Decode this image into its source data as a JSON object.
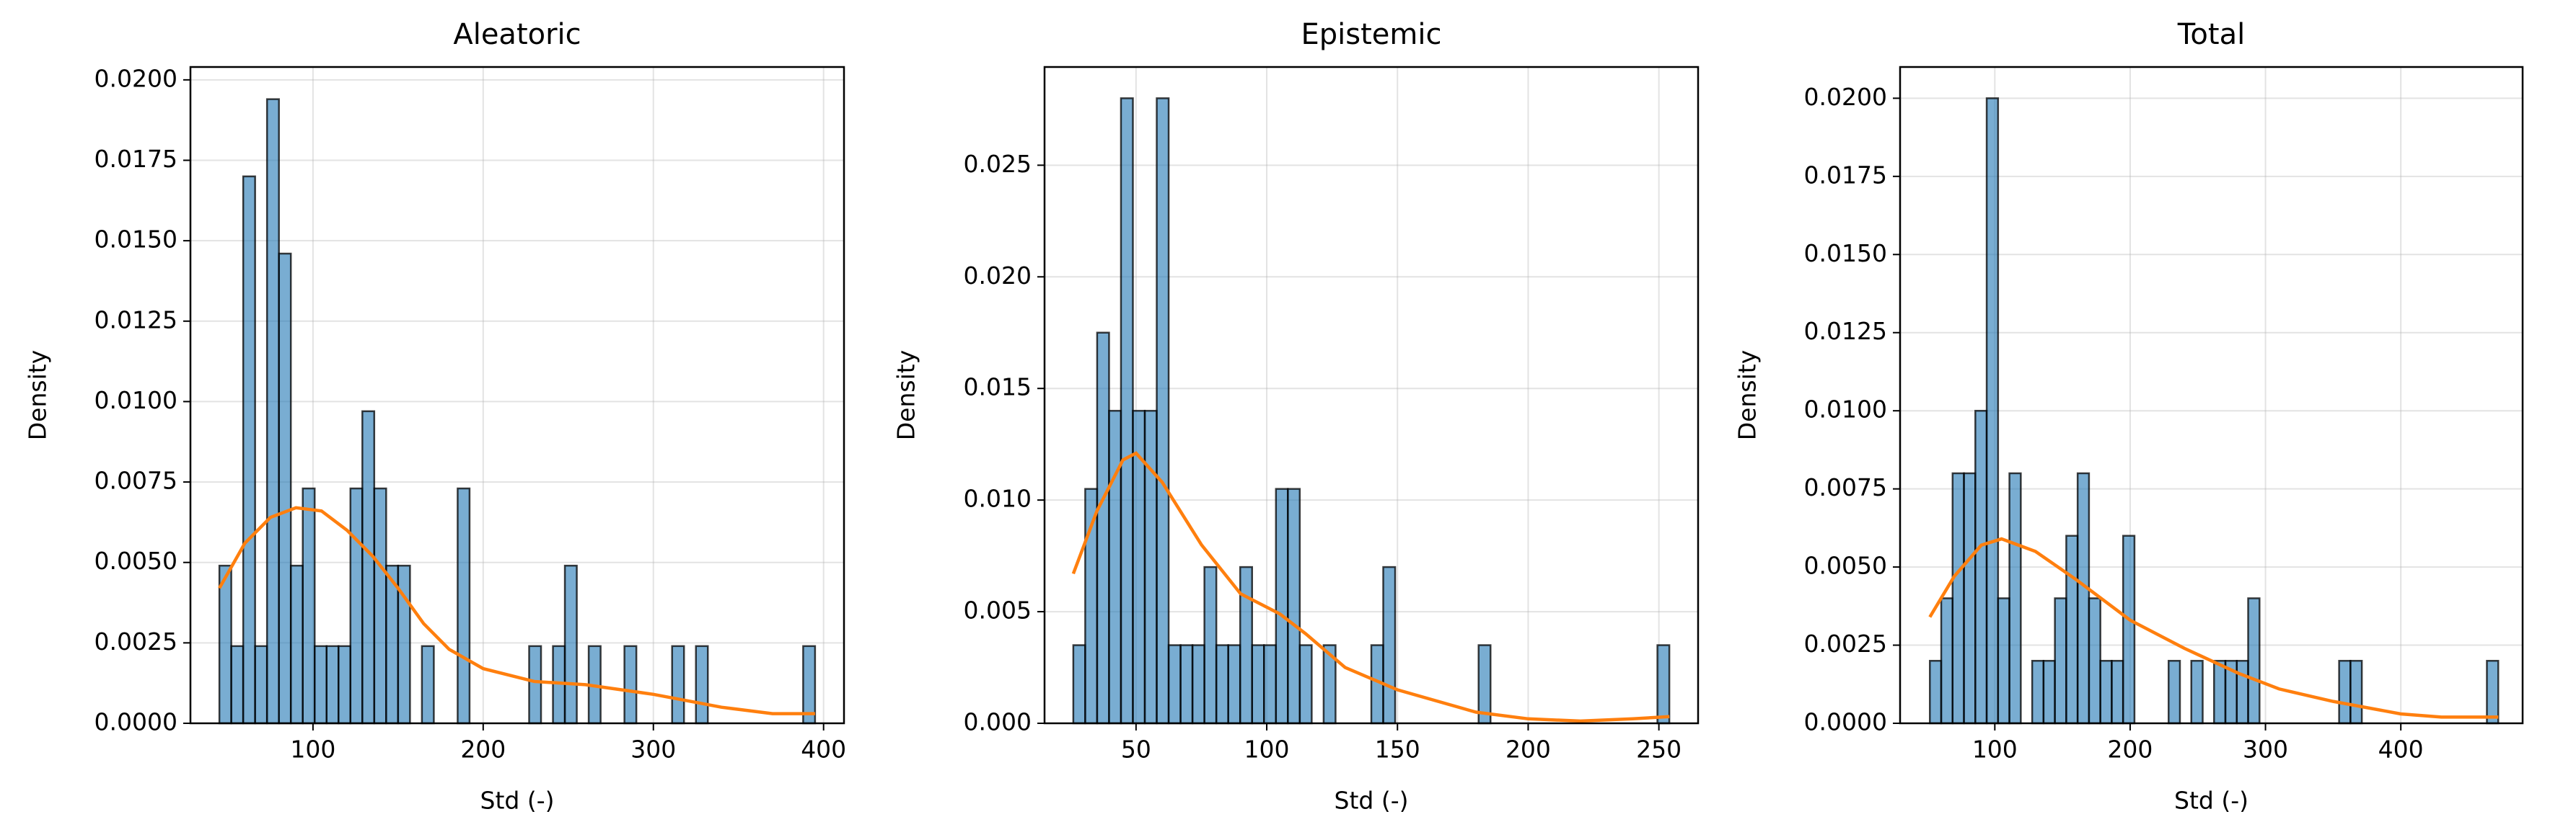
{
  "chart_data": [
    {
      "type": "histogram",
      "title": "Aleatoric",
      "x_label": "Std (-)",
      "y_label": "Density",
      "bins": [
        45,
        52,
        59,
        66,
        73,
        80,
        87,
        94,
        101,
        108,
        115,
        122,
        129,
        136,
        143,
        150,
        157,
        164,
        171,
        178,
        185,
        192,
        199,
        206,
        213,
        220,
        227,
        234,
        241,
        248,
        255,
        262,
        269,
        276,
        283,
        290,
        297,
        304,
        311,
        318,
        325,
        332,
        339,
        346,
        353,
        360,
        367,
        374,
        381,
        388,
        395
      ],
      "values": [
        0.0049,
        0.0024,
        0.017,
        0.0024,
        0.0194,
        0.0146,
        0.0049,
        0.0073,
        0.0024,
        0.0024,
        0.0024,
        0.0073,
        0.0097,
        0.0073,
        0.0049,
        0.0049,
        0,
        0.0024,
        0,
        0,
        0.0073,
        0,
        0,
        0,
        0,
        0,
        0.0024,
        0,
        0.0024,
        0.0049,
        0,
        0.0024,
        0,
        0,
        0.0024,
        0,
        0,
        0,
        0.0024,
        0,
        0.0024,
        0,
        0,
        0,
        0,
        0,
        0,
        0,
        0,
        0.0024
      ],
      "color": "#1f77b4",
      "opacity": 0.6,
      "edgecolor": "#000000",
      "kde": {
        "color": "#ff7f0e",
        "x": [
          45,
          60,
          75,
          90,
          105,
          120,
          135,
          150,
          165,
          180,
          200,
          230,
          260,
          300,
          340,
          370,
          395
        ],
        "y": [
          0.0042,
          0.0056,
          0.0064,
          0.0067,
          0.0066,
          0.006,
          0.0052,
          0.0042,
          0.0031,
          0.0023,
          0.0017,
          0.0013,
          0.0012,
          0.0009,
          0.0005,
          0.0003,
          0.0003
        ]
      },
      "xlim": [
        28,
        412
      ],
      "xticks": [
        100,
        200,
        300,
        400
      ],
      "ylim": [
        0,
        0.0204
      ],
      "yticks": [
        {
          "value": 0,
          "label": "0.0000"
        },
        {
          "value": 0.0025,
          "label": "0.0025"
        },
        {
          "value": 0.005,
          "label": "0.0050"
        },
        {
          "value": 0.0075,
          "label": "0.0075"
        },
        {
          "value": 0.01,
          "label": "0.0100"
        },
        {
          "value": 0.0125,
          "label": "0.0125"
        },
        {
          "value": 0.015,
          "label": "0.0150"
        },
        {
          "value": 0.0175,
          "label": "0.0175"
        },
        {
          "value": 0.02,
          "label": "0.0200"
        }
      ],
      "grid": true
    },
    {
      "type": "histogram",
      "title": "Epistemic",
      "x_label": "Std (-)",
      "y_label": "Density",
      "bins": [
        26,
        30.56,
        35.12,
        39.68,
        44.24,
        48.8,
        53.36,
        57.92,
        62.48,
        67.04,
        71.6,
        76.16,
        80.72,
        85.28,
        89.84,
        94.4,
        98.96,
        103.52,
        108.08,
        112.64,
        117.2,
        121.76,
        126.32,
        130.88,
        135.44,
        140,
        144.56,
        149.12,
        153.68,
        158.24,
        162.8,
        167.36,
        171.92,
        176.48,
        181.04,
        185.6,
        190.16,
        194.72,
        199.28,
        203.84,
        208.4,
        212.96,
        217.52,
        222.08,
        226.64,
        231.2,
        235.76,
        240.32,
        244.88,
        249.44,
        254
      ],
      "values": [
        0.0035,
        0.0105,
        0.0175,
        0.014,
        0.028,
        0.014,
        0.014,
        0.028,
        0.0035,
        0.0035,
        0.0035,
        0.007,
        0.0035,
        0.0035,
        0.007,
        0.0035,
        0.0035,
        0.0105,
        0.0105,
        0.0035,
        0,
        0.0035,
        0,
        0,
        0,
        0.0035,
        0.007,
        0,
        0,
        0,
        0,
        0,
        0,
        0,
        0.0035,
        0,
        0,
        0,
        0,
        0,
        0,
        0,
        0,
        0,
        0,
        0,
        0,
        0,
        0,
        0.0035
      ],
      "color": "#1f77b4",
      "opacity": 0.6,
      "edgecolor": "#000000",
      "kde": {
        "color": "#ff7f0e",
        "x": [
          26,
          35,
          45,
          50,
          60,
          75,
          90,
          105,
          115,
          130,
          150,
          180,
          200,
          220,
          240,
          254
        ],
        "y": [
          0.0067,
          0.0095,
          0.0118,
          0.0121,
          0.0108,
          0.008,
          0.0058,
          0.0049,
          0.004,
          0.0025,
          0.0015,
          0.0005,
          0.0002,
          0.0001,
          0.0002,
          0.0003
        ]
      },
      "xlim": [
        15,
        265
      ],
      "xticks": [
        50,
        100,
        150,
        200,
        250
      ],
      "ylim": [
        0,
        0.0294
      ],
      "yticks": [
        {
          "value": 0,
          "label": "0.000"
        },
        {
          "value": 0.005,
          "label": "0.005"
        },
        {
          "value": 0.01,
          "label": "0.010"
        },
        {
          "value": 0.015,
          "label": "0.015"
        },
        {
          "value": 0.02,
          "label": "0.020"
        },
        {
          "value": 0.025,
          "label": "0.025"
        }
      ],
      "grid": true
    },
    {
      "type": "histogram",
      "title": "Total",
      "x_label": "Std (-)",
      "y_label": "Density",
      "bins": [
        52,
        60.4,
        68.8,
        77.2,
        85.6,
        94,
        102.4,
        110.8,
        119.2,
        127.6,
        136,
        144.4,
        152.8,
        161.2,
        169.6,
        178,
        186.4,
        194.8,
        203.2,
        211.6,
        220,
        228.4,
        236.8,
        245.2,
        253.6,
        262,
        270.4,
        278.8,
        287.2,
        295.6,
        304,
        312.4,
        320.8,
        329.2,
        337.6,
        346,
        354.4,
        362.8,
        371.2,
        379.6,
        388,
        396.4,
        404.8,
        413.2,
        421.6,
        430,
        438.4,
        446.8,
        455.2,
        463.6,
        472
      ],
      "values": [
        0.002,
        0.004,
        0.008,
        0.008,
        0.01,
        0.02,
        0.004,
        0.008,
        0,
        0.002,
        0.002,
        0.004,
        0.006,
        0.008,
        0.004,
        0.002,
        0.002,
        0.006,
        0,
        0,
        0,
        0.002,
        0,
        0.002,
        0,
        0.002,
        0.002,
        0.002,
        0.004,
        0,
        0,
        0,
        0,
        0,
        0,
        0,
        0.002,
        0.002,
        0,
        0,
        0,
        0,
        0,
        0,
        0,
        0,
        0,
        0,
        0,
        0.002
      ],
      "color": "#1f77b4",
      "opacity": 0.6,
      "edgecolor": "#000000",
      "kde": {
        "color": "#ff7f0e",
        "x": [
          52,
          70,
          90,
          105,
          130,
          160,
          200,
          240,
          280,
          310,
          350,
          400,
          430,
          472
        ],
        "y": [
          0.0034,
          0.0047,
          0.0057,
          0.0059,
          0.0055,
          0.0046,
          0.0033,
          0.0024,
          0.0016,
          0.0011,
          0.0007,
          0.0003,
          0.0002,
          0.0002
        ]
      },
      "xlim": [
        30,
        490
      ],
      "xticks": [
        100,
        200,
        300,
        400
      ],
      "ylim": [
        0,
        0.021
      ],
      "yticks": [
        {
          "value": 0,
          "label": "0.0000"
        },
        {
          "value": 0.0025,
          "label": "0.0025"
        },
        {
          "value": 0.005,
          "label": "0.0050"
        },
        {
          "value": 0.0075,
          "label": "0.0075"
        },
        {
          "value": 0.01,
          "label": "0.0100"
        },
        {
          "value": 0.0125,
          "label": "0.0125"
        },
        {
          "value": 0.015,
          "label": "0.0150"
        },
        {
          "value": 0.0175,
          "label": "0.0175"
        },
        {
          "value": 0.02,
          "label": "0.0200"
        }
      ],
      "grid": true
    }
  ]
}
